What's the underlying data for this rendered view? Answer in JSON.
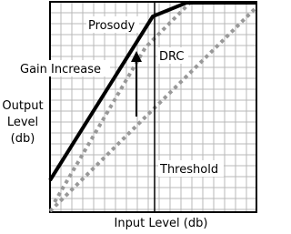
{
  "labels": {
    "prosody": "Prosody",
    "drc": "DRC",
    "gain": "Gain Increase",
    "output": [
      "Output",
      "Level",
      "(db)"
    ],
    "threshold": "Threshold",
    "input": "Input Level (db)"
  }
}
